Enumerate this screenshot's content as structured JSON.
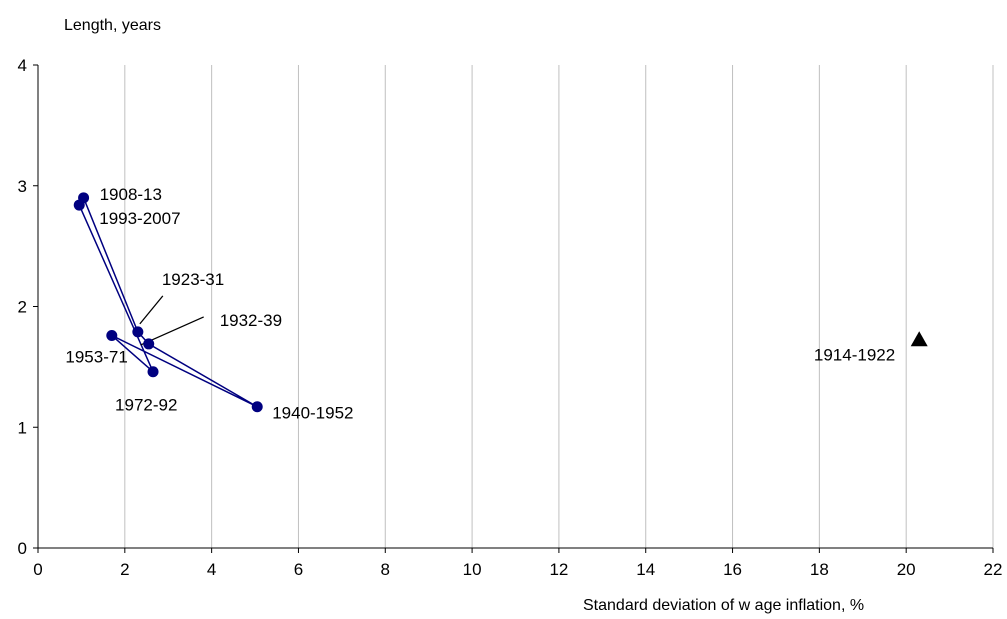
{
  "chart_data": {
    "type": "scatter",
    "title": "",
    "ylabel": "Length, years",
    "xlabel": "Standard deviation of w age inflation, %",
    "xlim": [
      0,
      22
    ],
    "ylim": [
      0,
      4
    ],
    "x_ticks": [
      "0",
      "2",
      "4",
      "6",
      "8",
      "10",
      "12",
      "14",
      "16",
      "18",
      "20",
      "22"
    ],
    "y_ticks": [
      "0",
      "1",
      "2",
      "3",
      "4"
    ],
    "grid": "vertical",
    "series": [
      {
        "marker": "circle",
        "color": "#000080",
        "connected": true,
        "points": [
          {
            "label": "1908-13",
            "x": 1.05,
            "y": 2.9
          },
          {
            "label": "1923-31",
            "x": 2.3,
            "y": 1.79
          },
          {
            "label": "1932-39",
            "x": 2.55,
            "y": 1.69
          },
          {
            "label": "1940-1952",
            "x": 5.05,
            "y": 1.17
          },
          {
            "label": "1953-71",
            "x": 1.7,
            "y": 1.76
          },
          {
            "label": "1972-92",
            "x": 2.65,
            "y": 1.46
          },
          {
            "label": "1993-2007",
            "x": 0.95,
            "y": 2.84
          }
        ]
      },
      {
        "marker": "triangle",
        "color": "#000000",
        "connected": false,
        "points": [
          {
            "label": "1914-1922",
            "x": 20.3,
            "y": 1.72
          }
        ]
      }
    ]
  }
}
